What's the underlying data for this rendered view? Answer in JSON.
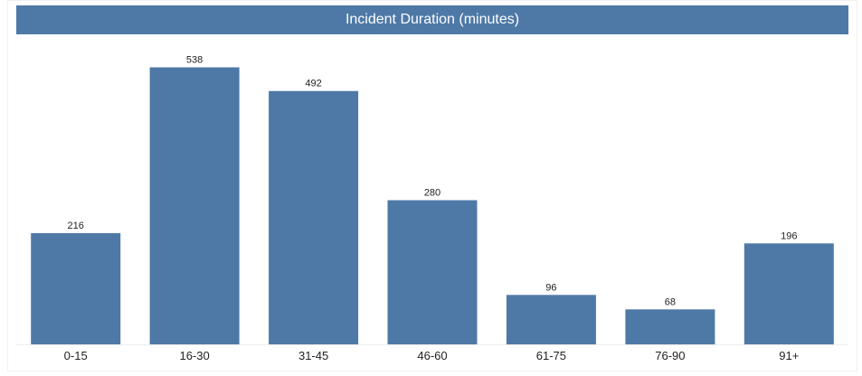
{
  "chart_data": {
    "type": "bar",
    "title": "Incident Duration (minutes)",
    "categories": [
      "0-15",
      "16-30",
      "31-45",
      "46-60",
      "61-75",
      "76-90",
      "91+"
    ],
    "values": [
      216,
      538,
      492,
      280,
      96,
      68,
      196
    ],
    "xlabel": "",
    "ylabel": "",
    "ylim": [
      0,
      550
    ],
    "grid": false,
    "data_labels": true
  },
  "colors": {
    "bar": "#4e79a7",
    "title_background": "#4e79a7",
    "title_text": "#ffffff"
  }
}
